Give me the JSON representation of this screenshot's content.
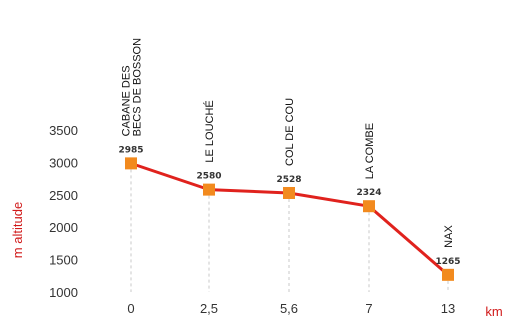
{
  "chart_data": {
    "type": "line",
    "title": "",
    "xlabel": "km",
    "ylabel": "m altitude",
    "ylim": [
      1000,
      3500
    ],
    "yticks": [
      1000,
      1500,
      2000,
      2500,
      3000,
      3500
    ],
    "grid": false,
    "legend": "none",
    "line_color": "#e0221d",
    "marker_color": "#f28a1e",
    "guide_color": "#c8c8c8",
    "axis_title_color": "#d11a1a",
    "points": [
      {
        "x_label": "0",
        "y": 2985,
        "y_label": "2985",
        "name_lines": [
          "CABANE DES",
          "BECS DE BOSSON"
        ]
      },
      {
        "x_label": "2,5",
        "y": 2580,
        "y_label": "2580",
        "name_lines": [
          "LE LOUCHÉ"
        ]
      },
      {
        "x_label": "5,6",
        "y": 2528,
        "y_label": "2528",
        "name_lines": [
          "COL DE COU"
        ]
      },
      {
        "x_label": "7",
        "y": 2324,
        "y_label": "2324",
        "name_lines": [
          "LA COMBE"
        ]
      },
      {
        "x_label": "13",
        "y": 1265,
        "y_label": "1265",
        "name_lines": [
          "NAX"
        ]
      }
    ]
  }
}
